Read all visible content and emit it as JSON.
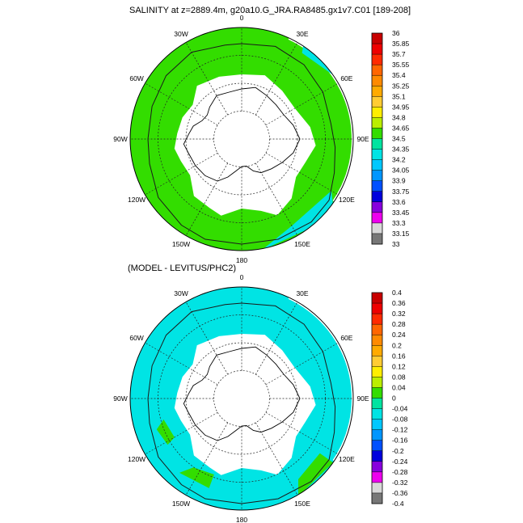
{
  "panels": [
    {
      "title": "SALINITY at z=2889.4m, g20a10.G_JRA.RA8485.gx1v7.C01 [189-208]",
      "main_color": "#33dd00",
      "secondary_color": "#00e4e4",
      "lon_labels": [
        "0",
        "30E",
        "60E",
        "90E",
        "120E",
        "150E",
        "180",
        "150W",
        "120W",
        "90W",
        "60W",
        "30W"
      ],
      "colorbar": {
        "labels": [
          "36",
          "35.85",
          "35.7",
          "35.55",
          "35.4",
          "35.25",
          "35.1",
          "34.95",
          "34.8",
          "34.65",
          "34.5",
          "34.35",
          "34.2",
          "34.05",
          "33.9",
          "33.75",
          "33.6",
          "33.45",
          "33.3",
          "33.15",
          "33"
        ],
        "colors": [
          "#c80000",
          "#ee0000",
          "#ff2a00",
          "#ff6600",
          "#ff8a00",
          "#ffaa00",
          "#ffcc33",
          "#ffee00",
          "#bbee00",
          "#33dd00",
          "#00e4a0",
          "#00e4e4",
          "#00c8ff",
          "#0096ff",
          "#0050ff",
          "#0000dd",
          "#8800dd",
          "#ee00ee",
          "#d8d8d8",
          "#777777"
        ]
      }
    },
    {
      "title": "(MODEL - LEVITUS/PHC2)",
      "main_color": "#00e4e4",
      "secondary_color": "#33dd00",
      "lon_labels": [
        "0",
        "30E",
        "60E",
        "90E",
        "120E",
        "150E",
        "180",
        "150W",
        "120W",
        "90W",
        "60W",
        "30W"
      ],
      "colorbar": {
        "labels": [
          "0.4",
          "0.36",
          "0.32",
          "0.28",
          "0.24",
          "0.2",
          "0.16",
          "0.12",
          "0.08",
          "0.04",
          "0",
          "-0.04",
          "-0.08",
          "-0.12",
          "-0.16",
          "-0.2",
          "-0.24",
          "-0.28",
          "-0.32",
          "-0.36",
          "-0.4"
        ],
        "colors": [
          "#c80000",
          "#ee0000",
          "#ff2a00",
          "#ff6600",
          "#ff8a00",
          "#ffaa00",
          "#ffcc33",
          "#ffee00",
          "#bbee00",
          "#33dd00",
          "#00e4a0",
          "#00e4e4",
          "#00c8ff",
          "#0096ff",
          "#0050ff",
          "#0000dd",
          "#8800dd",
          "#ee00ee",
          "#d8d8d8",
          "#777777"
        ]
      }
    }
  ]
}
